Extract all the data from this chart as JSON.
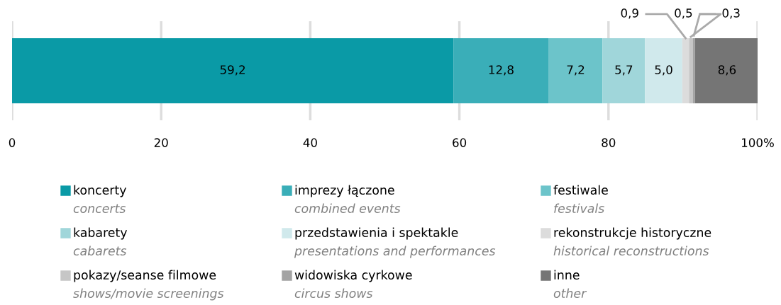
{
  "chart_data": {
    "type": "bar",
    "orientation": "horizontal",
    "stacked": true,
    "categories": [
      null
    ],
    "series": [
      {
        "name": "koncerty\nconcerts",
        "color": "#0a9aa6",
        "values": [
          59.2
        ],
        "value_labels": [
          "59,2"
        ]
      },
      {
        "name": "imprezy łączone\ncombined events",
        "color": "#3aaeb8",
        "values": [
          12.8
        ],
        "value_labels": [
          "12,8"
        ]
      },
      {
        "name": "festiwale\nfestivals",
        "color": "#6cc4ca",
        "values": [
          7.2
        ],
        "value_labels": [
          "7,2"
        ]
      },
      {
        "name": "kabarety\ncabarets",
        "color": "#a0d6da",
        "values": [
          5.7
        ],
        "value_labels": [
          "5,7"
        ]
      },
      {
        "name": "przedstawienia i spektakle\npresentations and performances",
        "color": "#d0e9ec",
        "values": [
          5.0
        ],
        "value_labels": [
          "5,0"
        ]
      },
      {
        "name": "rekonstrukcje historyczne\nhistorical reconstructions",
        "color": "#dcdcdc",
        "values": [
          0.9
        ],
        "value_labels": [
          "0,9"
        ]
      },
      {
        "name": "pokazy/seanse filmowe\nshows/movie screenings",
        "color": "#c6c6c6",
        "values": [
          0.5
        ],
        "value_labels": [
          "0,5"
        ]
      },
      {
        "name": "widowiska cyrkowe\ncircus shows",
        "color": "#a3a3a3",
        "values": [
          0.3
        ],
        "value_labels": [
          "0,3"
        ]
      },
      {
        "name": "inne\nother",
        "color": "#757575",
        "values": [
          8.6
        ],
        "value_labels": [
          "8,6"
        ]
      }
    ],
    "xlim": [
      0,
      100
    ],
    "xticks": [
      0,
      20,
      40,
      60,
      80,
      {
        "value": 100,
        "label": "100%"
      }
    ],
    "grid": "x",
    "legend": "bottom"
  }
}
